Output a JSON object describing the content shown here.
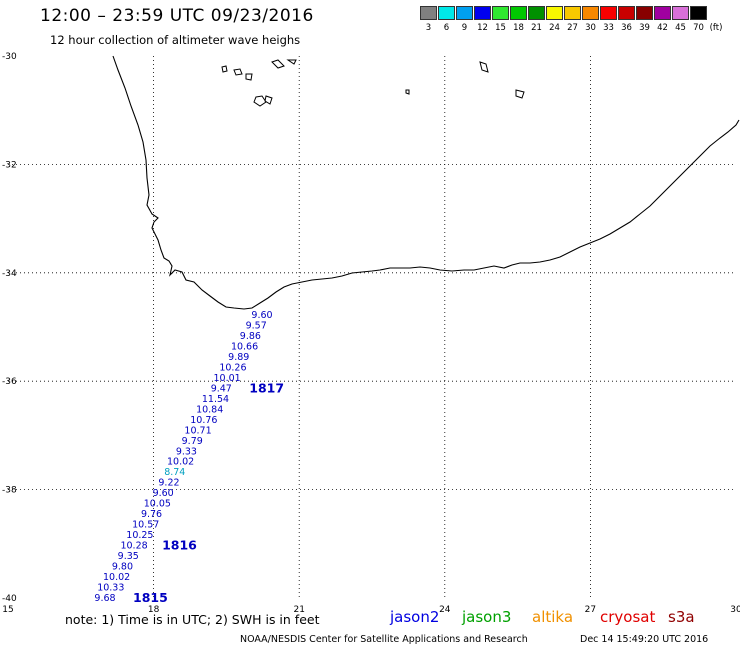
{
  "header": {
    "title": "12:00 – 23:59 UTC 09/23/2016",
    "subtitle": "12 hour collection of altimeter wave heighs"
  },
  "legend": {
    "unit": "(ft)",
    "items": [
      {
        "label": "3",
        "color": "#808080"
      },
      {
        "label": "6",
        "color": "#00e8e8"
      },
      {
        "label": "9",
        "color": "#00a0f0"
      },
      {
        "label": "12",
        "color": "#0000f0"
      },
      {
        "label": "15",
        "color": "#30e830"
      },
      {
        "label": "18",
        "color": "#00c800"
      },
      {
        "label": "21",
        "color": "#009000"
      },
      {
        "label": "24",
        "color": "#f8f800"
      },
      {
        "label": "27",
        "color": "#f8c800"
      },
      {
        "label": "30",
        "color": "#f88800"
      },
      {
        "label": "33",
        "color": "#f80000"
      },
      {
        "label": "36",
        "color": "#c80000"
      },
      {
        "label": "39",
        "color": "#880000"
      },
      {
        "label": "42",
        "color": "#a000a0"
      },
      {
        "label": "45",
        "color": "#d870d8"
      },
      {
        "label": "70",
        "color": "#000000"
      }
    ]
  },
  "map": {
    "lon_ticks": [
      "15",
      "18",
      "21",
      "24",
      "27",
      "30"
    ],
    "lat_ticks": [
      "-30",
      "-32",
      "-34",
      "-36",
      "-38",
      "-40"
    ],
    "lon_range": [
      15,
      30
    ],
    "lat_range": [
      -40,
      -30
    ],
    "grid": true
  },
  "track": {
    "color": "#0000c0",
    "highlight_color": "#00a0c0",
    "swh_values": [
      "9.60",
      "9.57",
      "9.86",
      "10.66",
      "9.89",
      "10.26",
      "10.01",
      "9.47",
      "11.54",
      "10.84",
      "10.76",
      "10.71",
      "9.79",
      "9.33",
      "10.02",
      "8.74",
      "9.22",
      "9.60",
      "10.05",
      "9.76",
      "10.57",
      "10.25",
      "10.28",
      "9.35",
      "9.80",
      "10.02",
      "10.33",
      "9.68"
    ],
    "highlight_index": 15,
    "time_labels": [
      {
        "text": "1817",
        "after_index": 7
      },
      {
        "text": "1816",
        "after_index": 22
      },
      {
        "text": "1815",
        "after_index": 27
      }
    ]
  },
  "footer": {
    "note": "note:  1) Time is in UTC;  2) SWH is in feet",
    "satellites": [
      {
        "name": "jason2",
        "color": "#0000e0"
      },
      {
        "name": "jason3",
        "color": "#00a000"
      },
      {
        "name": "altika",
        "color": "#f09000"
      },
      {
        "name": "cryosat",
        "color": "#e00000"
      },
      {
        "name": "s3a",
        "color": "#900000"
      }
    ],
    "credit": "NOAA/NESDIS Center for Satellite Applications and Research",
    "timestamp": "Dec 14 15:49:20 UTC 2016"
  }
}
